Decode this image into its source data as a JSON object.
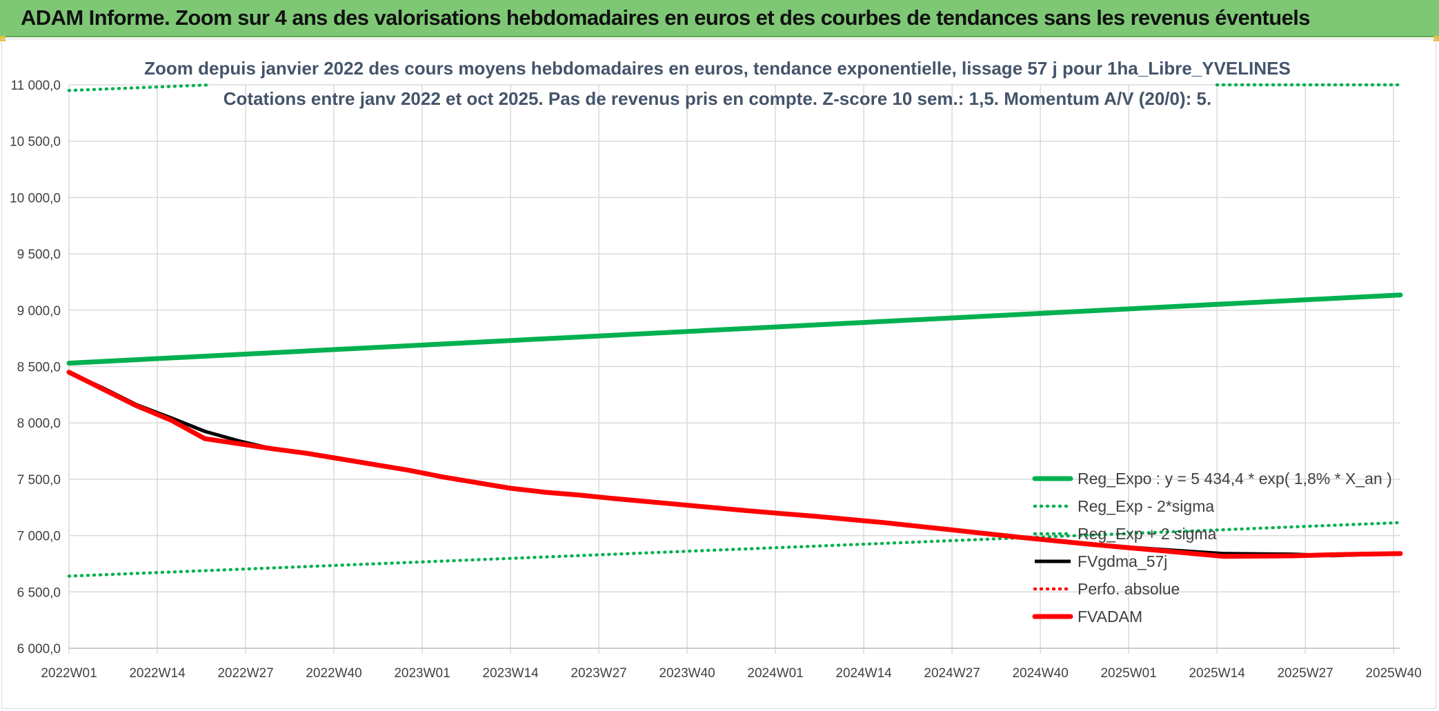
{
  "header": {
    "title": "ADAM Informe. Zoom sur 4 ans des valorisations hebdomadaires en euros et des courbes de tendances sans les revenus éventuels"
  },
  "colors": {
    "header_bg": "#7ec875",
    "reg_green": "#00b050",
    "fvgdma": "#000000",
    "fvadam": "#ff0000",
    "grid": "#d9d9d9"
  },
  "chart_data": {
    "type": "line",
    "title_line1": "Zoom depuis janvier 2022 des cours moyens hebdomadaires en euros, tendance exponentielle, lissage 57 j pour 1ha_Libre_YVELINES",
    "title_line2": "Cotations entre janv 2022 et oct 2025. Pas de revenus pris en compte. Z-score 10 sem.: 1,5. Momentum A/V (20/0): 5.",
    "x_categories": [
      "2022W01",
      "2022W14",
      "2022W27",
      "2022W40",
      "2023W01",
      "2023W14",
      "2023W27",
      "2023W40",
      "2024W01",
      "2024W14",
      "2024W27",
      "2024W40",
      "2025W01",
      "2025W14",
      "2025W27",
      "2025W40"
    ],
    "x_range_weeks": [
      0,
      196
    ],
    "ylim": [
      6000,
      11000
    ],
    "y_ticks": [
      "6 000,0",
      "6 500,0",
      "7 000,0",
      "7 500,0",
      "8 000,0",
      "8 500,0",
      "9 000,0",
      "9 500,0",
      "10 000,0",
      "10 500,0",
      "11 000,0"
    ],
    "y_tick_values": [
      6000,
      6500,
      7000,
      7500,
      8000,
      8500,
      9000,
      9500,
      10000,
      10500,
      11000
    ],
    "grid": true,
    "legend_position": "right",
    "series": [
      {
        "name": "Reg_Expo : y = 5 434,4 * exp( 1,8% *  X_an )",
        "style": "solid-thick",
        "color": "#00b050",
        "x": [
          0,
          196
        ],
        "y": [
          8530,
          9135
        ]
      },
      {
        "name": "Reg_Exp - 2*sigma",
        "style": "dotted",
        "color": "#00b050",
        "x": [
          0,
          196
        ],
        "y": [
          6640,
          7115
        ]
      },
      {
        "name": "Reg_Exp + 2 sigma",
        "style": "dotted",
        "color": "#00b050",
        "clipped_segments": [
          {
            "x": [
              0,
              21
            ],
            "y": [
              10950,
              11000
            ]
          },
          {
            "x": [
              169,
              196
            ],
            "y": [
              11000,
              11000
            ]
          }
        ]
      },
      {
        "name": "FVgdma_57j",
        "style": "solid",
        "color": "#000000",
        "x": [
          0,
          5,
          10,
          15,
          20,
          25,
          30,
          35,
          40,
          45,
          50,
          55,
          60,
          65,
          70,
          75,
          80,
          90,
          100,
          110,
          120,
          130,
          140,
          150,
          160,
          170,
          180,
          186,
          190,
          196
        ],
        "y": [
          8450,
          8310,
          8160,
          8045,
          7925,
          7840,
          7770,
          7730,
          7680,
          7630,
          7580,
          7520,
          7470,
          7420,
          7385,
          7360,
          7330,
          7275,
          7220,
          7170,
          7115,
          7050,
          6985,
          6925,
          6880,
          6840,
          6835,
          6822,
          6830,
          6840
        ]
      },
      {
        "name": "Perfo. absolue",
        "style": "dotted",
        "color": "#ff0000",
        "x": [],
        "y": []
      },
      {
        "name": "FVADAM",
        "style": "solid-thick",
        "color": "#ff0000",
        "x": [
          0,
          5,
          10,
          15,
          20,
          25,
          30,
          35,
          40,
          45,
          50,
          55,
          60,
          65,
          70,
          75,
          80,
          90,
          100,
          110,
          120,
          130,
          140,
          150,
          160,
          170,
          180,
          186,
          190,
          196
        ],
        "y": [
          8450,
          8300,
          8150,
          8025,
          7860,
          7815,
          7770,
          7730,
          7680,
          7630,
          7580,
          7520,
          7470,
          7420,
          7385,
          7360,
          7330,
          7275,
          7220,
          7170,
          7115,
          7050,
          6985,
          6925,
          6870,
          6815,
          6820,
          6830,
          6835,
          6840
        ]
      }
    ]
  }
}
